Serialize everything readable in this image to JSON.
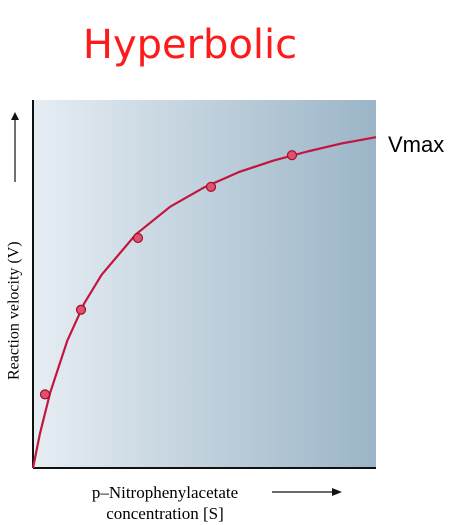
{
  "chart_data": {
    "type": "line",
    "title": "Hyperbolic",
    "annotation": "Vmax",
    "y_label": "Reaction velocity (V)",
    "x_label": [
      "p–Nitrophenylacetate",
      "concentration [S]"
    ],
    "xlim": [
      0,
      1
    ],
    "ylim": [
      0,
      1
    ],
    "curve": {
      "color": "#c2153f",
      "x": [
        0,
        0.02,
        0.05,
        0.1,
        0.15,
        0.2,
        0.3,
        0.4,
        0.5,
        0.6,
        0.7,
        0.8,
        0.9,
        1.0
      ],
      "values": [
        0,
        0.093,
        0.205,
        0.346,
        0.448,
        0.525,
        0.635,
        0.71,
        0.763,
        0.804,
        0.835,
        0.86,
        0.882,
        0.899
      ]
    },
    "points": {
      "color": "#e2506c",
      "x": [
        0.035,
        0.14,
        0.306,
        0.519,
        0.755
      ],
      "values": [
        0.2,
        0.43,
        0.625,
        0.764,
        0.85
      ]
    }
  }
}
